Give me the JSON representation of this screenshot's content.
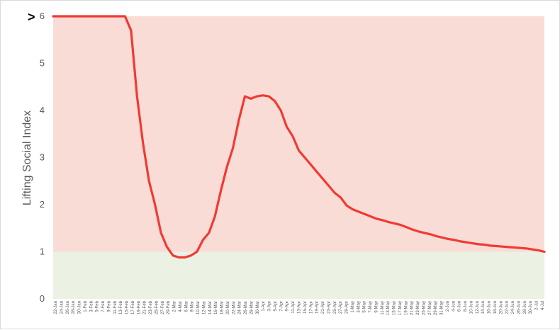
{
  "chart_data": {
    "type": "area",
    "title": "",
    "xlabel": "",
    "ylabel": "Lifting  Social Index",
    "ylim": [
      0,
      6
    ],
    "yticks": [
      "0",
      "1",
      "2",
      "3",
      "4",
      "5",
      "6"
    ],
    "top_marker": ">",
    "grid": false,
    "bands": [
      {
        "from": 0,
        "to": 1,
        "color": "#ebf1e3"
      },
      {
        "from": 1,
        "to": 6,
        "color": "#fadcd6"
      }
    ],
    "line_color": "#f03a33",
    "x_labels": [
      "22-Jan",
      "24-Jan",
      "26-Jan",
      "28-Jan",
      "30-Jan",
      "1-Feb",
      "3-Feb",
      "5-Feb",
      "7-Feb",
      "9-Feb",
      "11-Feb",
      "13-Feb",
      "15-Feb",
      "17-Feb",
      "19-Feb",
      "21-Feb",
      "23-Feb",
      "25-Feb",
      "27-Feb",
      "29-Feb",
      "2-Mar",
      "4-Mar",
      "6-Mar",
      "8-Mar",
      "10-Mar",
      "12-Mar",
      "14-Mar",
      "16-Mar",
      "18-Mar",
      "20-Mar",
      "22-Mar",
      "24-Mar",
      "26-Mar",
      "28-Mar",
      "30-Mar",
      "1-Apr",
      "3-Apr",
      "5-Apr",
      "7-Apr",
      "9-Apr",
      "11-Apr",
      "13-Apr",
      "15-Apr",
      "17-Apr",
      "19-Apr",
      "21-Apr",
      "23-Apr",
      "25-Apr",
      "27-Apr",
      "29-Apr",
      "1-May",
      "3-May",
      "5-May",
      "7-May",
      "9-May",
      "11-May",
      "13-May",
      "15-May",
      "17-May",
      "19-May",
      "21-May",
      "23-May",
      "25-May",
      "27-May",
      "29-May",
      "31-May",
      "2-Jun",
      "4-Jun",
      "6-Jun",
      "8-Jun",
      "10-Jun",
      "12-Jun",
      "14-Jun",
      "16-Jun",
      "18-Jun",
      "20-Jun",
      "22-Jun",
      "24-Jun",
      "26-Jun",
      "28-Jun",
      "30-Jun",
      "2-Jul",
      "4-Jul"
    ],
    "series": [
      {
        "values": [
          6,
          6,
          6,
          6,
          6,
          6,
          6,
          6,
          6,
          6,
          6,
          6,
          6,
          5.7,
          4.3,
          3.3,
          2.5,
          2.0,
          1.4,
          1.1,
          0.92,
          0.88,
          0.88,
          0.92,
          1.0,
          1.25,
          1.4,
          1.75,
          2.3,
          2.8,
          3.2,
          3.8,
          4.3,
          4.25,
          4.3,
          4.32,
          4.3,
          4.2,
          4.0,
          3.65,
          3.45,
          3.15,
          3.0,
          2.85,
          2.7,
          2.55,
          2.4,
          2.25,
          2.15,
          1.98,
          1.9,
          1.85,
          1.8,
          1.75,
          1.7,
          1.67,
          1.63,
          1.6,
          1.57,
          1.52,
          1.47,
          1.43,
          1.4,
          1.37,
          1.33,
          1.3,
          1.27,
          1.25,
          1.22,
          1.2,
          1.18,
          1.16,
          1.15,
          1.13,
          1.12,
          1.11,
          1.1,
          1.09,
          1.08,
          1.07,
          1.05,
          1.03,
          1.0
        ]
      }
    ]
  }
}
